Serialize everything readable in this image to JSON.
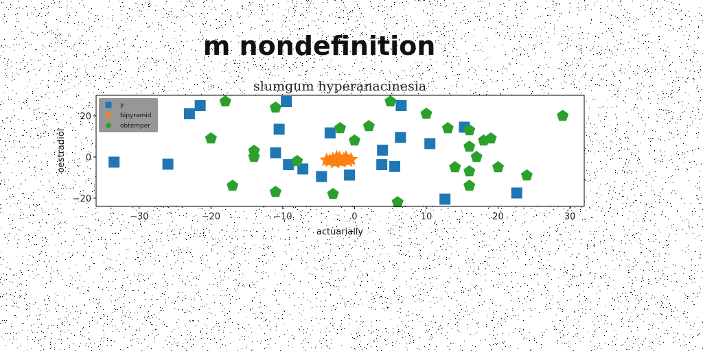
{
  "figure": {
    "title": "m nondefinition"
  },
  "chart_data": {
    "type": "scatter",
    "title": "slumgum hyperanacinesia",
    "xlabel": "actuarially",
    "ylabel": "oestradiol",
    "xlim": [
      -36,
      32
    ],
    "ylim": [
      -24,
      30
    ],
    "xticks": [
      -30,
      -20,
      -10,
      0,
      10,
      20,
      30
    ],
    "yticks": [
      -20,
      0,
      20
    ],
    "legend_position": "upper-left",
    "grid": false,
    "series": [
      {
        "name": "y",
        "marker": "square",
        "color": "#1f77b4",
        "points": [
          {
            "x": -33.5,
            "y": -2.5
          },
          {
            "x": -26,
            "y": -3.5
          },
          {
            "x": -23,
            "y": 21
          },
          {
            "x": -21.5,
            "y": 25
          },
          {
            "x": -11,
            "y": 2
          },
          {
            "x": -10.5,
            "y": 13.5
          },
          {
            "x": -9.5,
            "y": 27
          },
          {
            "x": -9.2,
            "y": -3.7
          },
          {
            "x": -7.2,
            "y": -5.8
          },
          {
            "x": -4.6,
            "y": -9.5
          },
          {
            "x": -3.4,
            "y": 11.7
          },
          {
            "x": -0.7,
            "y": -8.8
          },
          {
            "x": 3.9,
            "y": 3.3
          },
          {
            "x": 3.8,
            "y": -3.7
          },
          {
            "x": 5.6,
            "y": -4.6
          },
          {
            "x": 6.4,
            "y": 9.5
          },
          {
            "x": 6.5,
            "y": 25
          },
          {
            "x": 10.5,
            "y": 6.5
          },
          {
            "x": 12.6,
            "y": -20.5
          },
          {
            "x": 15.3,
            "y": 14.5
          },
          {
            "x": 22.6,
            "y": -17.5
          }
        ]
      },
      {
        "name": "bipyramid",
        "marker": "star",
        "color": "#ff7f0e",
        "points": [
          {
            "x": -3.5,
            "y": -2
          },
          {
            "x": -3,
            "y": -1
          },
          {
            "x": -2.7,
            "y": -2.6
          },
          {
            "x": -2.3,
            "y": -1.6
          },
          {
            "x": -2.1,
            "y": -0.5
          },
          {
            "x": -1.8,
            "y": -2.2
          },
          {
            "x": -1.5,
            "y": -1.1
          },
          {
            "x": -1.2,
            "y": -0.3
          },
          {
            "x": -0.9,
            "y": -1.9
          },
          {
            "x": -0.5,
            "y": -1.2
          },
          {
            "x": -3.9,
            "y": -1.5
          },
          {
            "x": -2.5,
            "y": -0.2
          }
        ]
      },
      {
        "name": "obtemper",
        "marker": "pentagon",
        "color": "#2ca02c",
        "points": [
          {
            "x": -18,
            "y": 27
          },
          {
            "x": -20,
            "y": 9
          },
          {
            "x": -17,
            "y": -14
          },
          {
            "x": -14,
            "y": 3
          },
          {
            "x": -14,
            "y": 0
          },
          {
            "x": -11,
            "y": 24
          },
          {
            "x": -11,
            "y": -17
          },
          {
            "x": -8,
            "y": -2
          },
          {
            "x": -3,
            "y": -18
          },
          {
            "x": -2,
            "y": 14
          },
          {
            "x": 0,
            "y": 8
          },
          {
            "x": 2,
            "y": 15
          },
          {
            "x": 5,
            "y": 27
          },
          {
            "x": 6,
            "y": -22
          },
          {
            "x": 10,
            "y": 21
          },
          {
            "x": 13,
            "y": 14
          },
          {
            "x": 14,
            "y": -5
          },
          {
            "x": 16,
            "y": 13
          },
          {
            "x": 16,
            "y": 5
          },
          {
            "x": 16,
            "y": -7
          },
          {
            "x": 16,
            "y": -14
          },
          {
            "x": 17,
            "y": 0
          },
          {
            "x": 18,
            "y": 8
          },
          {
            "x": 19,
            "y": 9
          },
          {
            "x": 20,
            "y": -5
          },
          {
            "x": 24,
            "y": -9
          },
          {
            "x": 29,
            "y": 20
          }
        ]
      }
    ]
  }
}
